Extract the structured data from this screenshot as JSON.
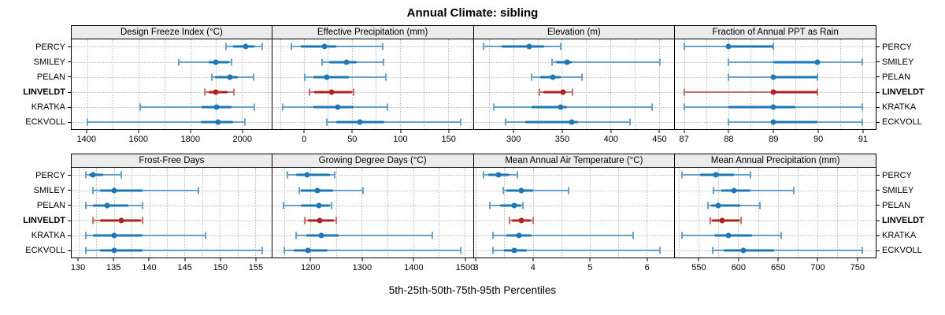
{
  "title": "Annual Climate: sibling",
  "caption": "5th-25th-50th-75th-95th Percentiles",
  "stations": [
    "PERCY",
    "SMILEY",
    "PELAN",
    "LINVELDT",
    "KRATKA",
    "ECKVOLL"
  ],
  "highlight_station": "LINVELDT",
  "colors": {
    "series": "#1f77b4",
    "series_light": "#6aa1c8",
    "highlight": "#b22222",
    "highlight_light": "#c4736b",
    "header_bg": "#ebebeb",
    "grid_line": "#bdbdbd",
    "panel_border": "#000000"
  },
  "chart_data": [
    {
      "type": "dotplot",
      "title": "Design Freeze Index (°C)",
      "percentile_labels": [
        "5th",
        "25th",
        "50th",
        "75th",
        "95th"
      ],
      "xdomain": [
        1340,
        2115
      ],
      "ticks": [
        1400,
        1600,
        1800,
        2000
      ],
      "minor_step": 100,
      "series": [
        {
          "name": "PERCY",
          "percentiles": [
            1940,
            1965,
            2015,
            2048,
            2079
          ]
        },
        {
          "name": "SMILEY",
          "percentiles": [
            1755,
            1870,
            1900,
            1950,
            1960
          ]
        },
        {
          "name": "PELAN",
          "percentiles": [
            1885,
            1895,
            1955,
            1985,
            2045
          ]
        },
        {
          "name": "LINVELDT",
          "percentiles": [
            1855,
            1870,
            1900,
            1945,
            1970
          ]
        },
        {
          "name": "KRATKA",
          "percentiles": [
            1605,
            1845,
            1903,
            1960,
            2048
          ]
        },
        {
          "name": "ECKVOLL",
          "percentiles": [
            1400,
            1840,
            1907,
            1965,
            2012
          ]
        }
      ]
    },
    {
      "type": "dotplot",
      "title": "Effective Precipitation (mm)",
      "percentile_labels": [
        "5th",
        "25th",
        "50th",
        "75th",
        "95th"
      ],
      "xdomain": [
        -33,
        176
      ],
      "ticks": [
        0,
        50,
        100,
        150
      ],
      "minor_step": 25,
      "series": [
        {
          "name": "PERCY",
          "percentiles": [
            -13,
            -3,
            21,
            34,
            82
          ]
        },
        {
          "name": "SMILEY",
          "percentiles": [
            19,
            26,
            44,
            55,
            83
          ]
        },
        {
          "name": "PELAN",
          "percentiles": [
            1,
            10,
            24,
            47,
            85
          ]
        },
        {
          "name": "LINVELDT",
          "percentiles": [
            6,
            11,
            29,
            50,
            52
          ]
        },
        {
          "name": "KRATKA",
          "percentiles": [
            -22,
            10,
            35,
            52,
            87
          ]
        },
        {
          "name": "ECKVOLL",
          "percentiles": [
            24,
            34,
            58,
            84,
            163
          ]
        }
      ]
    },
    {
      "type": "dotplot",
      "title": "Elevation (m)",
      "percentile_labels": [
        "5th",
        "25th",
        "50th",
        "75th",
        "95th"
      ],
      "xdomain": [
        259,
        466
      ],
      "ticks": [
        300,
        350,
        400,
        450
      ],
      "minor_step": 25,
      "series": [
        {
          "name": "PERCY",
          "percentiles": [
            269,
            288,
            316,
            332,
            349
          ]
        },
        {
          "name": "SMILEY",
          "percentiles": [
            340,
            344,
            355,
            360,
            451
          ]
        },
        {
          "name": "PELAN",
          "percentiles": [
            319,
            328,
            341,
            349,
            371
          ]
        },
        {
          "name": "LINVELDT",
          "percentiles": [
            327,
            331,
            351,
            354,
            361
          ]
        },
        {
          "name": "KRATKA",
          "percentiles": [
            280,
            319,
            349,
            355,
            443
          ]
        },
        {
          "name": "ECKVOLL",
          "percentiles": [
            292,
            312,
            360,
            367,
            420
          ]
        }
      ]
    },
    {
      "type": "dotplot",
      "title": "Fraction of Annual PPT as Rain",
      "percentile_labels": [
        "5th",
        "25th",
        "50th",
        "75th",
        "95th"
      ],
      "xdomain": [
        86.8,
        91.3
      ],
      "ticks": [
        87,
        88,
        89,
        90,
        91
      ],
      "minor_step": 0.5,
      "series": [
        {
          "name": "PERCY",
          "percentiles": [
            87,
            88,
            88,
            89,
            89
          ]
        },
        {
          "name": "SMILEY",
          "percentiles": [
            88,
            89,
            90,
            90,
            91
          ]
        },
        {
          "name": "PELAN",
          "percentiles": [
            88,
            89,
            89,
            90,
            90
          ]
        },
        {
          "name": "LINVELDT",
          "percentiles": [
            87,
            89,
            89,
            90,
            90
          ]
        },
        {
          "name": "KRATKA",
          "percentiles": [
            87,
            88,
            89,
            89.5,
            91
          ]
        },
        {
          "name": "ECKVOLL",
          "percentiles": [
            88,
            89,
            89,
            90,
            91
          ]
        }
      ]
    },
    {
      "type": "dotplot",
      "title": "Frost-Free Days",
      "percentile_labels": [
        "5th",
        "25th",
        "50th",
        "75th",
        "95th"
      ],
      "xdomain": [
        129,
        157.3
      ],
      "ticks": [
        130,
        135,
        140,
        145,
        150,
        155
      ],
      "minor_step": 2.5,
      "series": [
        {
          "name": "PERCY",
          "percentiles": [
            131,
            131.5,
            132,
            133.5,
            136
          ]
        },
        {
          "name": "SMILEY",
          "percentiles": [
            132,
            133,
            135,
            139,
            147
          ]
        },
        {
          "name": "PELAN",
          "percentiles": [
            131,
            132,
            134,
            137,
            139
          ]
        },
        {
          "name": "LINVELDT",
          "percentiles": [
            132,
            133,
            136,
            138.8,
            139
          ]
        },
        {
          "name": "KRATKA",
          "percentiles": [
            131,
            132,
            135,
            139,
            148
          ]
        },
        {
          "name": "ECKVOLL",
          "percentiles": [
            131,
            133,
            135,
            139,
            156
          ]
        }
      ]
    },
    {
      "type": "dotplot",
      "title": "Growing Degree Days (°C)",
      "percentile_labels": [
        "5th",
        "25th",
        "50th",
        "75th",
        "95th"
      ],
      "xdomain": [
        1126,
        1516
      ],
      "ticks": [
        1200,
        1300,
        1400,
        1500
      ],
      "minor_step": 50,
      "series": [
        {
          "name": "PERCY",
          "percentiles": [
            1155,
            1172,
            1194,
            1238,
            1247
          ]
        },
        {
          "name": "SMILEY",
          "percentiles": [
            1178,
            1182,
            1214,
            1244,
            1302
          ]
        },
        {
          "name": "PELAN",
          "percentiles": [
            1148,
            1182,
            1216,
            1238,
            1241
          ]
        },
        {
          "name": "LINVELDT",
          "percentiles": [
            1189,
            1195,
            1218,
            1246,
            1250
          ]
        },
        {
          "name": "KRATKA",
          "percentiles": [
            1173,
            1192,
            1221,
            1255,
            1437
          ]
        },
        {
          "name": "ECKVOLL",
          "percentiles": [
            1149,
            1168,
            1196,
            1233,
            1492
          ]
        }
      ]
    },
    {
      "type": "dotplot",
      "title": "Mean Annual Air Temperature (°C)",
      "percentile_labels": [
        "5th",
        "25th",
        "50th",
        "75th",
        "95th"
      ],
      "xdomain": [
        2.96,
        6.49
      ],
      "ticks": [
        3,
        4,
        5,
        6
      ],
      "minor_step": 0.5,
      "series": [
        {
          "name": "PERCY",
          "percentiles": [
            3.13,
            3.22,
            3.39,
            3.59,
            3.73
          ]
        },
        {
          "name": "SMILEY",
          "percentiles": [
            3.48,
            3.54,
            3.8,
            4.01,
            4.63
          ]
        },
        {
          "name": "PELAN",
          "percentiles": [
            3.24,
            3.42,
            3.67,
            3.8,
            3.83
          ]
        },
        {
          "name": "LINVELDT",
          "percentiles": [
            3.59,
            3.63,
            3.8,
            3.97,
            4.0
          ]
        },
        {
          "name": "KRATKA",
          "percentiles": [
            3.3,
            3.54,
            3.75,
            3.98,
            5.77
          ]
        },
        {
          "name": "ECKVOLL",
          "percentiles": [
            3.3,
            3.49,
            3.68,
            3.89,
            6.24
          ]
        }
      ]
    },
    {
      "type": "dotplot",
      "title": "Mean Annual Precipitation (mm)",
      "percentile_labels": [
        "5th",
        "25th",
        "50th",
        "75th",
        "95th"
      ],
      "xdomain": [
        520,
        774
      ],
      "ticks": [
        550,
        600,
        650,
        700,
        750
      ],
      "minor_step": 25,
      "series": [
        {
          "name": "PERCY",
          "percentiles": [
            529,
            552,
            572,
            595,
            615
          ]
        },
        {
          "name": "SMILEY",
          "percentiles": [
            569,
            579,
            595,
            615,
            670
          ]
        },
        {
          "name": "PELAN",
          "percentiles": [
            562,
            566,
            575,
            603,
            627
          ]
        },
        {
          "name": "LINVELDT",
          "percentiles": [
            565,
            567,
            580,
            602,
            604
          ]
        },
        {
          "name": "KRATKA",
          "percentiles": [
            529,
            570,
            588,
            617,
            654
          ]
        },
        {
          "name": "ECKVOLL",
          "percentiles": [
            568,
            582,
            606,
            645,
            757
          ]
        }
      ]
    }
  ]
}
